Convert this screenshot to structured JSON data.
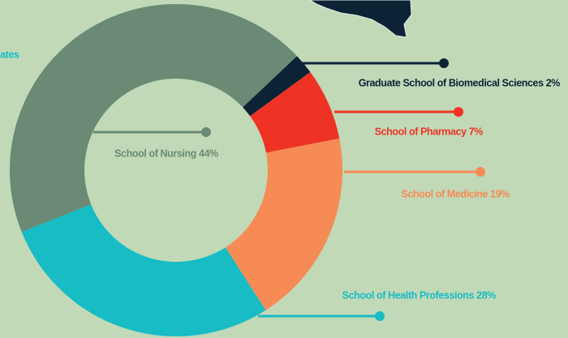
{
  "chart_data": {
    "type": "donut",
    "labels": [
      "Graduate School of Biomedical Sciences 2%",
      "School of Pharmacy 7%",
      "School of Medicine 19%",
      "School of Health Professions 28%",
      "School of Nursing 44%"
    ],
    "values": [
      2,
      7,
      19,
      28,
      44
    ],
    "colors": [
      "#0c2336",
      "#ee3325",
      "#f68b55",
      "#17bcc5",
      "#6a8a75"
    ],
    "annotation": "ates"
  }
}
